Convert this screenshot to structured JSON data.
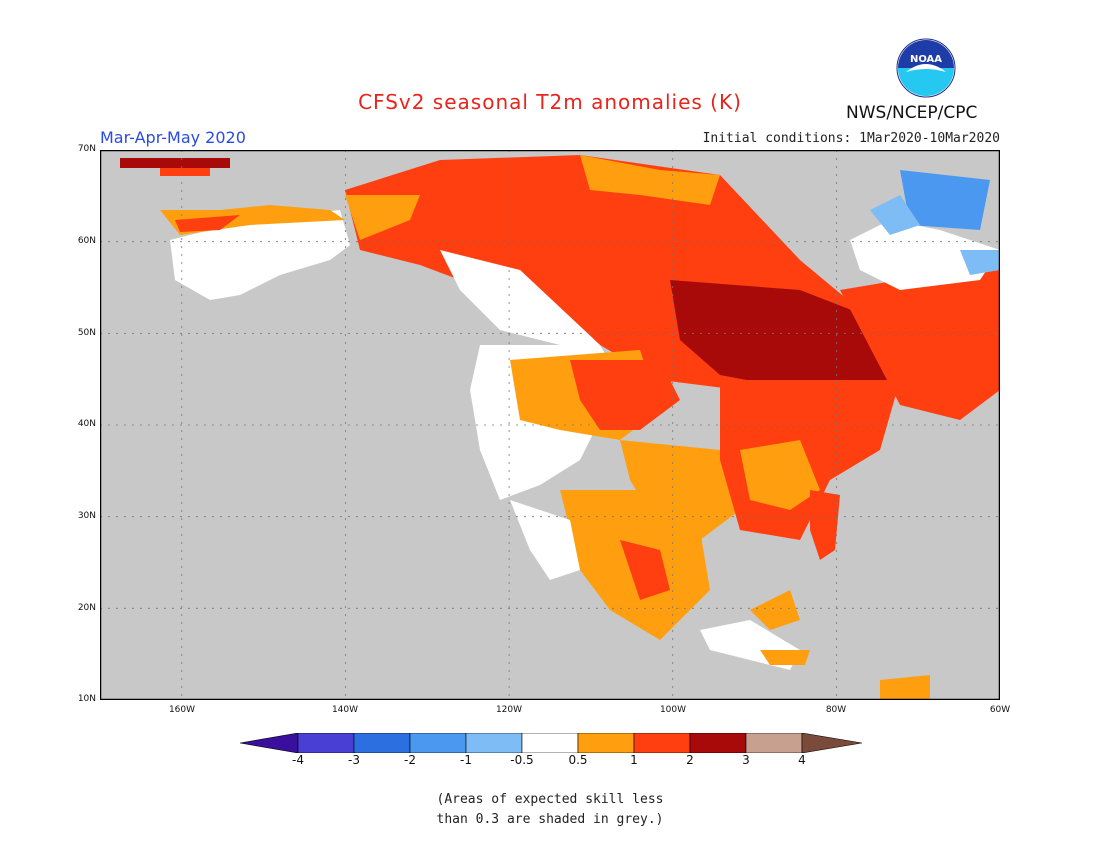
{
  "header": {
    "title": "CFSv2 seasonal T2m anomalies (K)",
    "period": "Mar-Apr-May 2020",
    "initial_conditions": "Initial conditions: 1Mar2020-10Mar2020",
    "agency": "NWS/NCEP/CPC",
    "logo_text": "NOAA"
  },
  "map": {
    "region": "North America",
    "lat_labels": [
      "70N",
      "60N",
      "50N",
      "40N",
      "30N",
      "20N",
      "10N"
    ],
    "lon_labels": [
      "160W",
      "140W",
      "120W",
      "100W",
      "80W",
      "60W"
    ],
    "lat_range": [
      10,
      70
    ],
    "lon_range": [
      -170,
      -60
    ],
    "gridlines": true,
    "skill_mask_color": "#c8c8c8"
  },
  "colorbar": {
    "ticks": [
      "-4",
      "-3",
      "-2",
      "-1",
      "-0.5",
      "0.5",
      "1",
      "2",
      "3",
      "4"
    ],
    "colors": [
      "#3a0f9e",
      "#4a3fd4",
      "#2c6fe0",
      "#4a98f0",
      "#7ebcf5",
      "#ffffff",
      "#ff9f0f",
      "#ff3f10",
      "#a80a0a",
      "#c8a090",
      "#7a4a3a"
    ]
  },
  "note": {
    "line1": "(Areas of expected skill less",
    "line2": "than 0.3 are shaded in grey.)"
  }
}
